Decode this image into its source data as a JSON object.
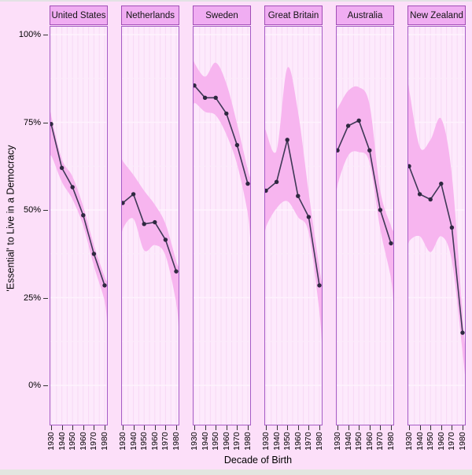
{
  "page": {
    "top_strip_color": "#e2e2e4",
    "bottom_strip_color": "#e3e6e0",
    "background_color": "#fcdff9"
  },
  "axes": {
    "y_title": "'Essential' to Live in a Democracy",
    "x_title": "Decade of Birth",
    "y_tick_labels": [
      "100%",
      "75%",
      "50%",
      "25%",
      "0%"
    ],
    "x_tick_labels": [
      "1930",
      "1940",
      "1950",
      "1960",
      "1970",
      "1980"
    ]
  },
  "colors": {
    "panel_bg": "#fdeafc",
    "minor_v_grid": "#f7d9f5",
    "minor_h_grid": "#fcebfa",
    "major_h_grid": "#fef3fd",
    "panel_border": "#a65cc6",
    "ribbon": "#f7b5ef",
    "line": "#3f3856",
    "point": "#2e2840",
    "header_bg": "#f0adf2",
    "header_border": "#a14eb6"
  },
  "chart_data": {
    "type": "line",
    "layout": "faceted-small-multiples",
    "title": "",
    "xlabel": "Decade of Birth",
    "ylabel": "'Essential' to Live in a Democracy",
    "x": [
      1930,
      1940,
      1950,
      1960,
      1970,
      1980
    ],
    "y_ticks": [
      0,
      25,
      50,
      75,
      100
    ],
    "ylim": [
      0,
      100
    ],
    "grid": true,
    "legend_position": "none",
    "ribbon_meaning": "confidence-band",
    "series": [
      {
        "name": "United States",
        "values": [
          74.5,
          62,
          56.5,
          48.5,
          37.5,
          28.5
        ],
        "ci_upper": [
          77,
          64.5,
          59.5,
          51,
          40,
          31
        ],
        "ci_lower": [
          65.5,
          58,
          53,
          45.5,
          34,
          24
        ]
      },
      {
        "name": "Netherlands",
        "values": [
          52,
          54.5,
          46,
          46.5,
          41.5,
          32.5
        ],
        "ci_upper": [
          64,
          60,
          55.5,
          51.5,
          46,
          35.5
        ],
        "ci_lower": [
          44.5,
          47.5,
          38.5,
          40,
          37,
          23.5
        ]
      },
      {
        "name": "Sweden",
        "values": [
          85.5,
          82,
          82,
          77.5,
          68.5,
          57.5
        ],
        "ci_upper": [
          92,
          88,
          92,
          86,
          74.5,
          61.5
        ],
        "ci_lower": [
          80.5,
          78,
          77,
          71.5,
          63,
          49
        ]
      },
      {
        "name": "Great Britain",
        "values": [
          55.5,
          58,
          70,
          54,
          48,
          28.5
        ],
        "ci_upper": [
          72.5,
          67,
          90.5,
          78,
          55,
          33.5
        ],
        "ci_lower": [
          45,
          50.5,
          52.5,
          48,
          43.5,
          21
        ]
      },
      {
        "name": "Australia",
        "values": [
          67,
          74,
          75.5,
          67,
          50,
          40.5
        ],
        "ci_upper": [
          79,
          84,
          85,
          80,
          55.5,
          45.5
        ],
        "ci_lower": [
          57,
          65.5,
          66.5,
          63.5,
          44.5,
          30.5
        ]
      },
      {
        "name": "New Zealand",
        "values": [
          62.5,
          54.5,
          53,
          57.5,
          45,
          15
        ],
        "ci_upper": [
          84.5,
          68,
          70,
          76,
          60,
          20
        ],
        "ci_lower": [
          41,
          42.5,
          38,
          42.5,
          35.5,
          9.5
        ]
      }
    ]
  }
}
